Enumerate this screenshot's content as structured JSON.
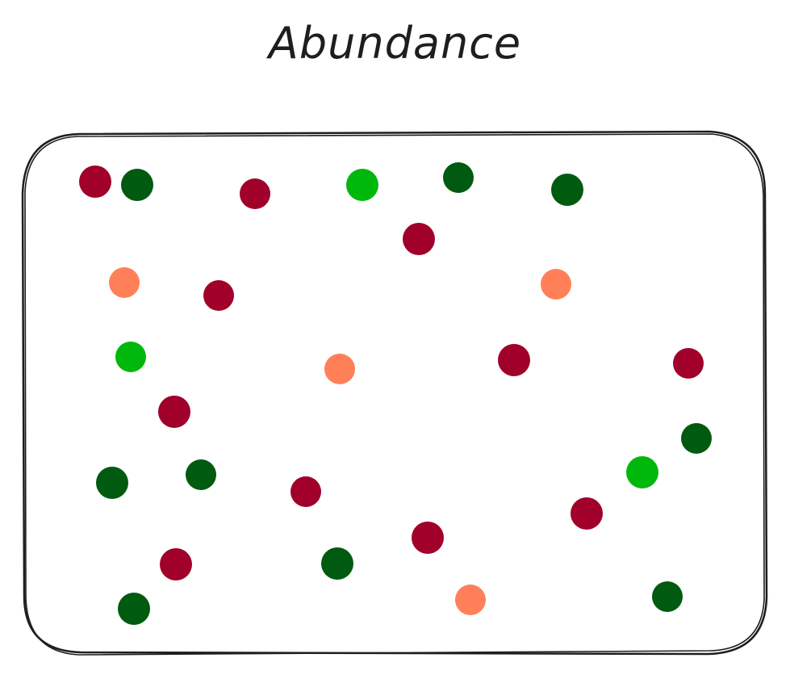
{
  "title": "Abundance",
  "colors": {
    "outline": "#1e1e1e",
    "dark_red": "#a0002a",
    "dark_green": "#005a10",
    "bright_green": "#00b80c",
    "coral": "#ff8058"
  }
}
